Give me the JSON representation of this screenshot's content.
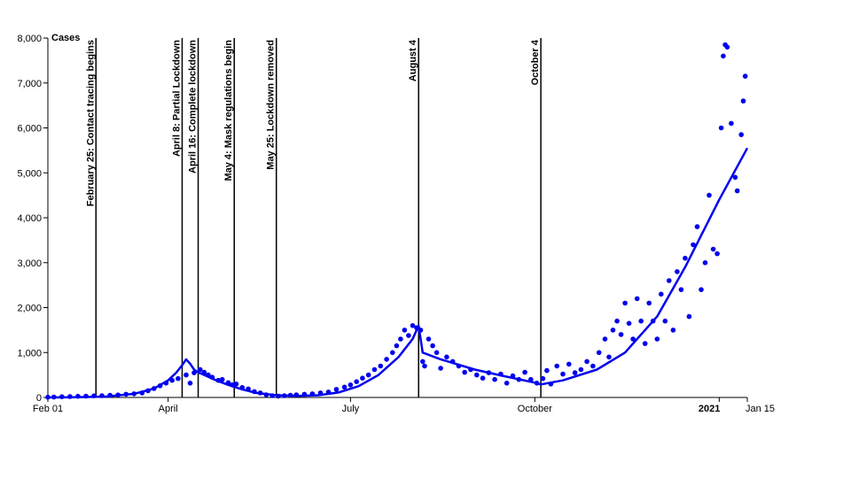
{
  "chart_data": {
    "type": "scatter",
    "ylabel": "Cases",
    "ylim": [
      0,
      8000
    ],
    "xlim": [
      "2020-02-01",
      "2021-01-15"
    ],
    "y_ticks": [
      0,
      1000,
      2000,
      3000,
      4000,
      5000,
      6000,
      7000,
      8000
    ],
    "y_tick_labels": [
      "0",
      "1,000",
      "2,000",
      "3,000",
      "4,000",
      "5,000",
      "6,000",
      "7,000",
      "8,000"
    ],
    "x_ticks": [
      {
        "date": "2020-02-01",
        "label": "Feb 01"
      },
      {
        "date": "2020-04-01",
        "label": "April"
      },
      {
        "date": "2020-07-01",
        "label": "July"
      },
      {
        "date": "2020-10-01",
        "label": "October"
      },
      {
        "date": "2021-01-01",
        "label": "2021"
      },
      {
        "date": "2021-01-15",
        "label": "Jan 15"
      }
    ],
    "events": [
      {
        "date": "2020-02-25",
        "label": "February 25: Contact tracing begins"
      },
      {
        "date": "2020-04-08",
        "label": "April 8: Partial Lockdown"
      },
      {
        "date": "2020-04-16",
        "label": "April 16: Complete lockdown"
      },
      {
        "date": "2020-05-04",
        "label": "May 4: Mask regulations begin"
      },
      {
        "date": "2020-05-25",
        "label": "May 25: Lockdown removed"
      },
      {
        "date": "2020-08-04",
        "label": "August 4"
      },
      {
        "date": "2020-10-04",
        "label": "October 4"
      }
    ],
    "series": [
      {
        "kind": "points",
        "color": "#0000ee",
        "points": [
          [
            "2020-02-01",
            5
          ],
          [
            "2020-02-04",
            10
          ],
          [
            "2020-02-08",
            15
          ],
          [
            "2020-02-12",
            20
          ],
          [
            "2020-02-16",
            25
          ],
          [
            "2020-02-20",
            30
          ],
          [
            "2020-02-24",
            35
          ],
          [
            "2020-02-28",
            40
          ],
          [
            "2020-03-03",
            50
          ],
          [
            "2020-03-07",
            55
          ],
          [
            "2020-03-11",
            70
          ],
          [
            "2020-03-15",
            80
          ],
          [
            "2020-03-19",
            100
          ],
          [
            "2020-03-22",
            150
          ],
          [
            "2020-03-25",
            200
          ],
          [
            "2020-03-28",
            260
          ],
          [
            "2020-03-31",
            320
          ],
          [
            "2020-04-03",
            380
          ],
          [
            "2020-04-06",
            420
          ],
          [
            "2020-04-10",
            500
          ],
          [
            "2020-04-12",
            320
          ],
          [
            "2020-04-14",
            550
          ],
          [
            "2020-04-17",
            620
          ],
          [
            "2020-04-19",
            560
          ],
          [
            "2020-04-21",
            500
          ],
          [
            "2020-04-23",
            450
          ],
          [
            "2020-04-26",
            380
          ],
          [
            "2020-04-28",
            400
          ],
          [
            "2020-05-01",
            330
          ],
          [
            "2020-05-03",
            280
          ],
          [
            "2020-05-05",
            300
          ],
          [
            "2020-05-08",
            220
          ],
          [
            "2020-05-11",
            190
          ],
          [
            "2020-05-14",
            130
          ],
          [
            "2020-05-17",
            100
          ],
          [
            "2020-05-20",
            60
          ],
          [
            "2020-05-23",
            40
          ],
          [
            "2020-05-26",
            30
          ],
          [
            "2020-05-29",
            40
          ],
          [
            "2020-06-01",
            50
          ],
          [
            "2020-06-04",
            60
          ],
          [
            "2020-06-08",
            70
          ],
          [
            "2020-06-12",
            80
          ],
          [
            "2020-06-16",
            100
          ],
          [
            "2020-06-20",
            120
          ],
          [
            "2020-06-24",
            180
          ],
          [
            "2020-06-28",
            230
          ],
          [
            "2020-07-01",
            280
          ],
          [
            "2020-07-04",
            350
          ],
          [
            "2020-07-07",
            430
          ],
          [
            "2020-07-10",
            500
          ],
          [
            "2020-07-13",
            620
          ],
          [
            "2020-07-16",
            700
          ],
          [
            "2020-07-19",
            850
          ],
          [
            "2020-07-22",
            1000
          ],
          [
            "2020-07-24",
            1150
          ],
          [
            "2020-07-26",
            1300
          ],
          [
            "2020-07-28",
            1500
          ],
          [
            "2020-07-30",
            1380
          ],
          [
            "2020-08-01",
            1600
          ],
          [
            "2020-08-03",
            1550
          ],
          [
            "2020-08-05",
            1500
          ],
          [
            "2020-08-06",
            800
          ],
          [
            "2020-08-07",
            700
          ],
          [
            "2020-08-09",
            1300
          ],
          [
            "2020-08-11",
            1150
          ],
          [
            "2020-08-13",
            1000
          ],
          [
            "2020-08-15",
            650
          ],
          [
            "2020-08-18",
            900
          ],
          [
            "2020-08-21",
            800
          ],
          [
            "2020-08-24",
            700
          ],
          [
            "2020-08-27",
            560
          ],
          [
            "2020-08-30",
            620
          ],
          [
            "2020-09-02",
            500
          ],
          [
            "2020-09-05",
            430
          ],
          [
            "2020-09-08",
            550
          ],
          [
            "2020-09-11",
            400
          ],
          [
            "2020-09-14",
            520
          ],
          [
            "2020-09-17",
            320
          ],
          [
            "2020-09-20",
            480
          ],
          [
            "2020-09-23",
            400
          ],
          [
            "2020-09-26",
            560
          ],
          [
            "2020-09-29",
            400
          ],
          [
            "2020-10-02",
            320
          ],
          [
            "2020-10-05",
            420
          ],
          [
            "2020-10-07",
            600
          ],
          [
            "2020-10-09",
            300
          ],
          [
            "2020-10-12",
            700
          ],
          [
            "2020-10-15",
            520
          ],
          [
            "2020-10-18",
            740
          ],
          [
            "2020-10-21",
            550
          ],
          [
            "2020-10-24",
            620
          ],
          [
            "2020-10-27",
            800
          ],
          [
            "2020-10-30",
            700
          ],
          [
            "2020-11-02",
            1000
          ],
          [
            "2020-11-05",
            1300
          ],
          [
            "2020-11-07",
            900
          ],
          [
            "2020-11-09",
            1500
          ],
          [
            "2020-11-11",
            1700
          ],
          [
            "2020-11-13",
            1400
          ],
          [
            "2020-11-15",
            2100
          ],
          [
            "2020-11-17",
            1650
          ],
          [
            "2020-11-19",
            1300
          ],
          [
            "2020-11-21",
            2200
          ],
          [
            "2020-11-23",
            1700
          ],
          [
            "2020-11-25",
            1200
          ],
          [
            "2020-11-27",
            2100
          ],
          [
            "2020-11-29",
            1700
          ],
          [
            "2020-12-01",
            1300
          ],
          [
            "2020-12-03",
            2300
          ],
          [
            "2020-12-05",
            1700
          ],
          [
            "2020-12-07",
            2600
          ],
          [
            "2020-12-09",
            1500
          ],
          [
            "2020-12-11",
            2800
          ],
          [
            "2020-12-13",
            2400
          ],
          [
            "2020-12-15",
            3100
          ],
          [
            "2020-12-17",
            1800
          ],
          [
            "2020-12-19",
            3400
          ],
          [
            "2020-12-21",
            3800
          ],
          [
            "2020-12-23",
            2400
          ],
          [
            "2020-12-25",
            3000
          ],
          [
            "2020-12-27",
            4500
          ],
          [
            "2020-12-29",
            3300
          ],
          [
            "2020-12-31",
            3200
          ],
          [
            "2021-01-02",
            6000
          ],
          [
            "2021-01-03",
            7600
          ],
          [
            "2021-01-04",
            7850
          ],
          [
            "2021-01-05",
            7800
          ],
          [
            "2021-01-07",
            6100
          ],
          [
            "2021-01-09",
            4900
          ],
          [
            "2021-01-10",
            4600
          ],
          [
            "2021-01-12",
            5850
          ],
          [
            "2021-01-13",
            6600
          ],
          [
            "2021-01-14",
            7150
          ]
        ]
      },
      {
        "kind": "line",
        "color": "#0000ee",
        "points": [
          [
            "2020-02-01",
            0
          ],
          [
            "2020-02-15",
            5
          ],
          [
            "2020-03-01",
            20
          ],
          [
            "2020-03-15",
            80
          ],
          [
            "2020-03-25",
            200
          ],
          [
            "2020-04-01",
            380
          ],
          [
            "2020-04-05",
            550
          ],
          [
            "2020-04-08",
            720
          ],
          [
            "2020-04-10",
            850
          ],
          [
            "2020-04-12",
            750
          ],
          [
            "2020-04-14",
            620
          ],
          [
            "2020-04-16",
            560
          ],
          [
            "2020-04-20",
            480
          ],
          [
            "2020-04-25",
            380
          ],
          [
            "2020-05-01",
            280
          ],
          [
            "2020-05-08",
            180
          ],
          [
            "2020-05-15",
            100
          ],
          [
            "2020-05-25",
            50
          ],
          [
            "2020-06-05",
            35
          ],
          [
            "2020-06-15",
            50
          ],
          [
            "2020-06-25",
            110
          ],
          [
            "2020-07-05",
            250
          ],
          [
            "2020-07-15",
            500
          ],
          [
            "2020-07-25",
            900
          ],
          [
            "2020-08-01",
            1300
          ],
          [
            "2020-08-04",
            1600
          ],
          [
            "2020-08-06",
            1000
          ],
          [
            "2020-08-15",
            850
          ],
          [
            "2020-09-01",
            620
          ],
          [
            "2020-09-15",
            480
          ],
          [
            "2020-10-01",
            330
          ],
          [
            "2020-10-04",
            290
          ],
          [
            "2020-10-15",
            380
          ],
          [
            "2020-11-01",
            620
          ],
          [
            "2020-11-15",
            1000
          ],
          [
            "2020-12-01",
            1800
          ],
          [
            "2020-12-15",
            2900
          ],
          [
            "2021-01-01",
            4400
          ],
          [
            "2021-01-15",
            5550
          ]
        ]
      }
    ]
  }
}
